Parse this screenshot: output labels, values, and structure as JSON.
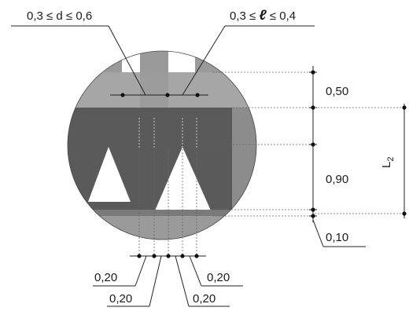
{
  "labels": {
    "d_range": "0,3 ≤ d ≤ 0,6",
    "l_range_left": "0,3 ≤ ",
    "l_symbol": "ℓ",
    "l_range_right": " ≤ 0,4",
    "dim_top": "0,50",
    "dim_mid": "0,90",
    "dim_bottom": "0,10",
    "dim_L": "L",
    "dim_L_sub": "2",
    "b_left_1": "0,20",
    "b_left_2": "0,20",
    "b_right_1": "0,20",
    "b_right_2": "0,20"
  },
  "colors": {
    "light_gray": "#9a9a9a",
    "mid_gray": "#8c8c8c",
    "dark_gray": "#5a5a5a",
    "white": "#ffffff",
    "ink": "#1a1a1a"
  }
}
